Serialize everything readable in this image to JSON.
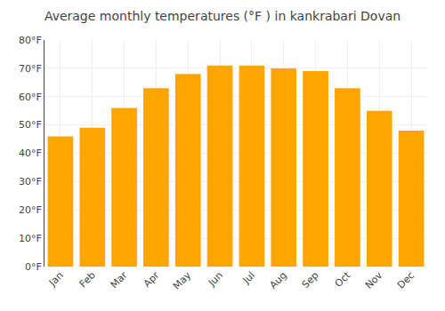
{
  "chart_data": {
    "type": "bar",
    "title": "Average monthly temperatures (°F ) in kankrabari Dovan",
    "categories": [
      "Jan",
      "Feb",
      "Mar",
      "Apr",
      "May",
      "Jun",
      "Jul",
      "Aug",
      "Sep",
      "Oct",
      "Nov",
      "Dec"
    ],
    "values": [
      46,
      49,
      56,
      63,
      68,
      71,
      71,
      70,
      69,
      63,
      55,
      48
    ],
    "color": "#FFA500",
    "ylim": [
      0,
      80
    ],
    "yticks": [
      {
        "value": 0,
        "label": "0°F"
      },
      {
        "value": 10,
        "label": "10°F"
      },
      {
        "value": 20,
        "label": "20°F"
      },
      {
        "value": 30,
        "label": "30°F"
      },
      {
        "value": 40,
        "label": "40°F"
      },
      {
        "value": 50,
        "label": "50°F"
      },
      {
        "value": 60,
        "label": "60°F"
      },
      {
        "value": 70,
        "label": "70°F"
      },
      {
        "value": 80,
        "label": "80°F"
      }
    ],
    "grid": true
  }
}
